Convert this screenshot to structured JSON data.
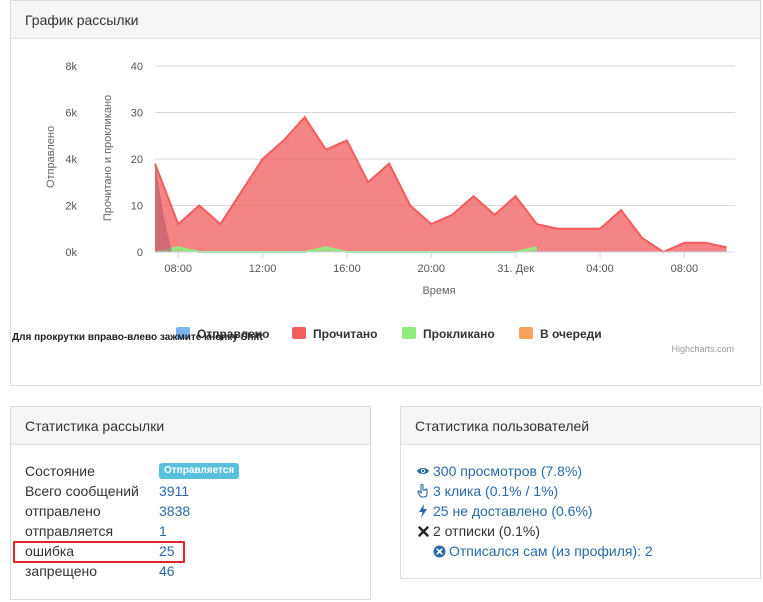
{
  "chart_panel": {
    "title": "График рассылки"
  },
  "chart_data": {
    "type": "area",
    "xlabel": "Время",
    "ylabel_left": "Отправлено",
    "ylabel_right": "Прочитано и прокликано",
    "y_left_ticks": [
      "8k",
      "6k",
      "4k",
      "2k",
      "0k"
    ],
    "y_right_ticks": [
      "40",
      "30",
      "20",
      "10",
      "0"
    ],
    "ylim_left": [
      0,
      8000
    ],
    "ylim_right": [
      0,
      40
    ],
    "x_ticks": [
      "08:00",
      "12:00",
      "16:00",
      "20:00",
      "31. Дек",
      "04:00",
      "08:00"
    ],
    "x_hours": [
      6.9,
      7,
      8,
      9,
      10,
      11,
      12,
      13,
      14,
      15,
      16,
      17,
      18,
      19,
      20,
      21,
      22,
      23,
      24,
      25,
      26,
      27,
      28,
      29,
      30,
      31,
      32,
      33,
      34
    ],
    "series": [
      {
        "name": "Отправлено",
        "color": "#7cb5ec",
        "x": [
          6.9,
          7.3,
          7.7
        ],
        "values": [
          3838,
          1600,
          0
        ]
      },
      {
        "name": "Прочитано",
        "color": "#f15c5c",
        "x": [
          6.9,
          8,
          9,
          10,
          11,
          12,
          13,
          14,
          15,
          16,
          17,
          18,
          19,
          20,
          21,
          22,
          23,
          24,
          25,
          26,
          27,
          28,
          29,
          30,
          31,
          32,
          33,
          34
        ],
        "values": [
          19,
          6,
          10,
          6,
          13,
          20,
          24,
          29,
          22,
          24,
          15,
          19,
          10,
          6,
          8,
          12,
          8,
          12,
          6,
          5,
          5,
          5,
          9,
          3,
          0,
          2,
          2,
          1
        ]
      },
      {
        "name": "Прокликано",
        "color": "#90ed7d",
        "x": [
          6.9,
          8,
          9,
          10,
          11,
          12,
          13,
          14,
          15,
          16,
          17,
          18,
          19,
          20,
          21,
          22,
          23,
          24,
          25
        ],
        "values": [
          0,
          1,
          0,
          0,
          0,
          0,
          0,
          0,
          1,
          0,
          0,
          0,
          0,
          0,
          0,
          0,
          0,
          0,
          1
        ]
      },
      {
        "name": "В очереди",
        "color": "#f7a35c",
        "x": [],
        "values": []
      }
    ],
    "legend_position": "bottom",
    "credit": "Highcharts.com"
  },
  "hint": "Для прокрутки вправо-влево зажмите кнопку Shift",
  "stats_panel": {
    "title": "Статистика рассылки",
    "state_label": "Состояние",
    "state_badge": "Отправляется",
    "rows": [
      {
        "label": "Всего сообщений",
        "value": "3911"
      },
      {
        "label": "отправлено",
        "value": "3838"
      },
      {
        "label": "отправляется",
        "value": "1"
      },
      {
        "label": "ошибка",
        "value": "25"
      },
      {
        "label": "запрещено",
        "value": "46"
      }
    ]
  },
  "users_panel": {
    "title": "Статистика пользователей",
    "views": "300 просмотров (7.8%)",
    "clicks": "3 клика (0.1% / 1%)",
    "undelivered": "25 не доставлено (0.6%)",
    "unsubscribes": "2 отписки (0.1%)",
    "self_unsub": "Отписался сам (из профиля): 2"
  },
  "icons": {
    "views": "eye-icon",
    "clicks": "hand-pointer-icon",
    "undelivered": "bolt-icon",
    "unsubscribes": "close-icon",
    "self_unsub": "circle-x-icon"
  }
}
